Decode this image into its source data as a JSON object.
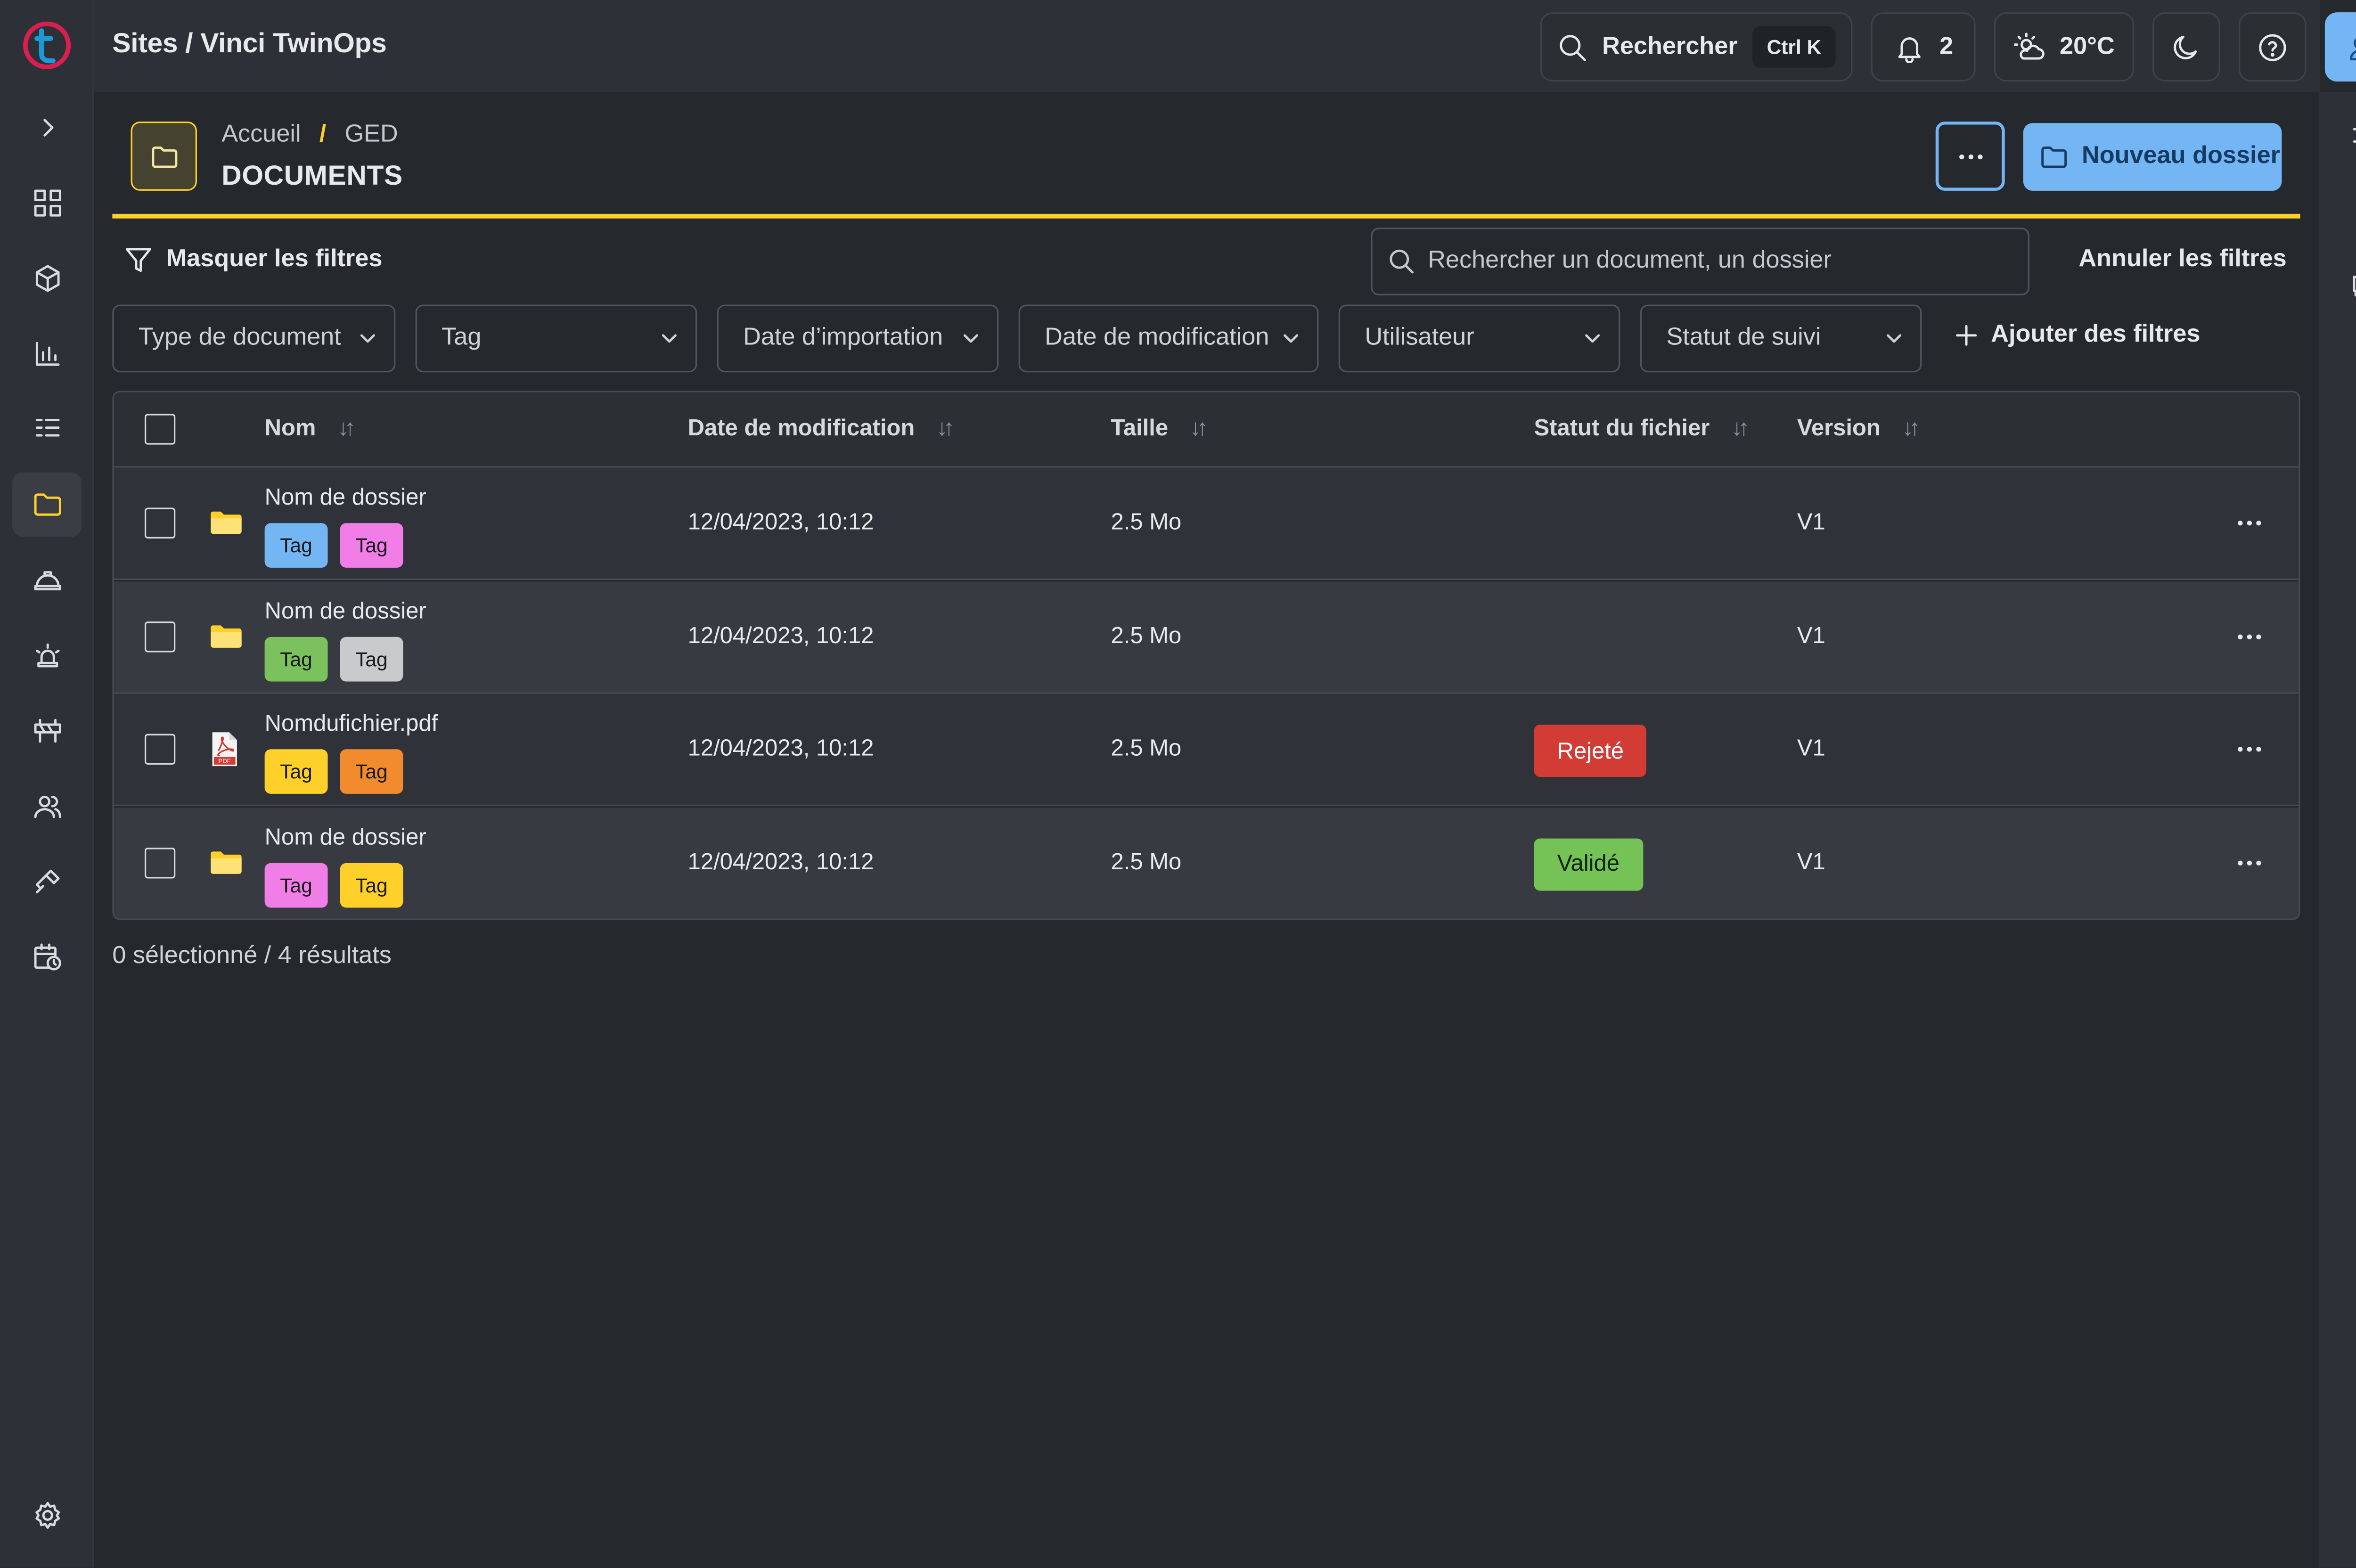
{
  "app": {
    "crumb": "Sites / Vinci TwinOps"
  },
  "topbar": {
    "search_label": "Rechercher",
    "search_shortcut": "Ctrl K",
    "notifications_count": "2",
    "weather": "20°C"
  },
  "header": {
    "breadcrumb_home": "Accueil",
    "breadcrumb_sep": "/",
    "breadcrumb_current": "GED",
    "title": "DOCUMENTS",
    "more_label": "···",
    "new_folder_label": "Nouveau dossier"
  },
  "filters": {
    "toggle_label": "Masquer les filtres",
    "search_placeholder": "Rechercher un document, un dossier",
    "reset_label": "Annuler les filtres",
    "dropdowns": [
      "Type de document",
      "Tag",
      "Date d’importation",
      "Date de modification",
      "Utilisateur",
      "Statut de suivi"
    ],
    "add_label": "Ajouter des filtres"
  },
  "table": {
    "columns": [
      "Nom",
      "Date de modification",
      "Taille",
      "Statut du fichier",
      "Version"
    ],
    "rows": [
      {
        "type": "folder",
        "name": "Nom de dossier",
        "tags": [
          {
            "label": "Tag",
            "color": "#74b6f4"
          },
          {
            "label": "Tag",
            "color": "#f17ee6"
          }
        ],
        "modified": "12/04/2023, 10:12",
        "size": "2.5 Mo",
        "status": "",
        "version": "V1"
      },
      {
        "type": "folder",
        "name": "Nom de dossier",
        "tags": [
          {
            "label": "Tag",
            "color": "#7bc25f"
          },
          {
            "label": "Tag",
            "color": "#c9cacb"
          }
        ],
        "modified": "12/04/2023, 10:12",
        "size": "2.5 Mo",
        "status": "",
        "version": "V1"
      },
      {
        "type": "pdf",
        "name": "Nomdufichier.pdf",
        "tags": [
          {
            "label": "Tag",
            "color": "#ffd029"
          },
          {
            "label": "Tag",
            "color": "#f28b2d"
          }
        ],
        "modified": "12/04/2023, 10:12",
        "size": "2.5 Mo",
        "status": "Rejeté",
        "status_color": "#d23c35",
        "version": "V1"
      },
      {
        "type": "folder",
        "name": "Nom de dossier",
        "tags": [
          {
            "label": "Tag",
            "color": "#f17ee6"
          },
          {
            "label": "Tag",
            "color": "#ffd029"
          }
        ],
        "modified": "12/04/2023, 10:12",
        "size": "2.5 Mo",
        "status": "Validé",
        "status_color": "#75c256",
        "version": "V1"
      }
    ]
  },
  "footer": {
    "selection_count": "0 sélectionné / 4 résultats"
  },
  "colors": {
    "accent": "#ffd029",
    "primary": "#74b6f4",
    "brand": "#d81f4f"
  }
}
